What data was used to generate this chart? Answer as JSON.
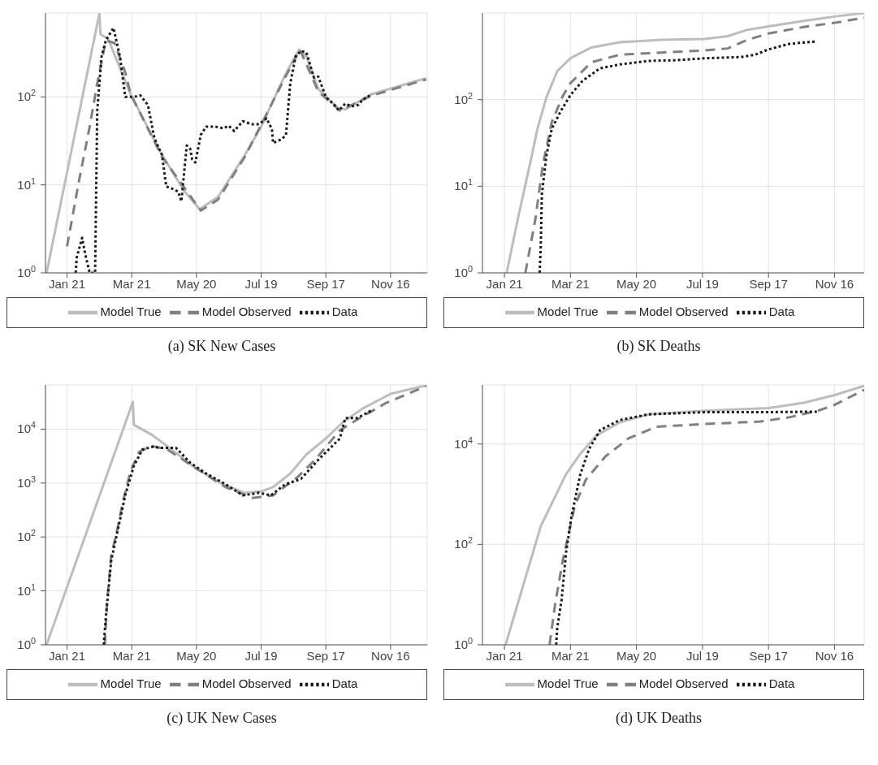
{
  "chart_data": [
    {
      "type": "line",
      "title": "(a) SK New Cases",
      "log": true,
      "grid": true,
      "legend": "bottom",
      "xlim": [
        "--01-01",
        "--12-20"
      ],
      "xticks": [
        {
          "value": "--01-21",
          "label": "Jan 21"
        },
        {
          "value": "--03-21",
          "label": "Mar 21"
        },
        {
          "value": "--05-20",
          "label": "May 20"
        },
        {
          "value": "--07-19",
          "label": "Jul 19"
        },
        {
          "value": "--09-17",
          "label": "Sep 17"
        },
        {
          "value": "--11-16",
          "label": "Nov 16"
        }
      ],
      "ylim": [
        1,
        900
      ],
      "yticks": [
        {
          "value": 1,
          "label": "10$^{0}$"
        },
        {
          "value": 10,
          "label": "10$^{1}$"
        },
        {
          "value": 100,
          "label": "10$^{2}$"
        }
      ],
      "series": [
        {
          "name": "Model True",
          "color": "#bdbdbd",
          "line_style": "solid",
          "x": [
            "--01-02",
            "--02-20",
            "--02-21",
            "--02-28",
            "--03-20",
            "--04-18",
            "--05-09",
            "--05-23",
            "--06-09",
            "--07-04",
            "--07-19",
            "--08-10",
            "--08-23",
            "--08-30",
            "--09-10",
            "--09-28",
            "--10-05",
            "--10-29",
            "--11-24",
            "--12-19"
          ],
          "values": [
            1,
            890,
            515,
            460,
            107,
            22,
            8.4,
            5.3,
            7.3,
            22,
            46,
            176,
            345,
            290,
            123,
            75,
            72,
            107,
            133,
            163
          ]
        },
        {
          "name": "Model Observed",
          "color": "#808080",
          "line_style": "dashed",
          "x": [
            "--01-21",
            "--02-01",
            "--02-11",
            "--02-18",
            "--02-26",
            "--03-05",
            "--03-15",
            "--03-20",
            "--04-18",
            "--05-24",
            "--06-09",
            "--07-04",
            "--08-10",
            "--08-24",
            "--09-10",
            "--09-30",
            "--10-29",
            "--12-19"
          ],
          "values": [
            2,
            11,
            46,
            142,
            440,
            410,
            190,
            107,
            21,
            5.1,
            6.8,
            21,
            165,
            345,
            115,
            70,
            103,
            158
          ]
        },
        {
          "name": "Data",
          "color": "#1a1a1a",
          "line_style": "dotted",
          "x": [
            "--01-29",
            "--01-30",
            "--02-04",
            "--02-07",
            "--02-11",
            "--02-16",
            "--02-18",
            "--02-22",
            "--02-26",
            "--03-04",
            "--03-10",
            "--03-15",
            "--03-23",
            "--03-29",
            "--04-05",
            "--04-11",
            "--04-18",
            "--04-22",
            "--04-28",
            "--05-03",
            "--05-06",
            "--05-11",
            "--05-14",
            "--05-16",
            "--05-19",
            "--05-24",
            "--05-29",
            "--06-06",
            "--06-14",
            "--06-19",
            "--06-24",
            "--07-02",
            "--07-10",
            "--07-17",
            "--07-24",
            "--07-29",
            "--07-30",
            "--08-07",
            "--08-11",
            "--08-15",
            "--08-20",
            "--08-25",
            "--08-30",
            "--09-06",
            "--09-10",
            "--09-17",
            "--09-25",
            "--09-29",
            "--10-05",
            "--10-11",
            "--10-17",
            "--10-21",
            "--10-30"
          ],
          "values": [
            1,
            1.5,
            2.5,
            1.6,
            1,
            1,
            70,
            290,
            440,
            610,
            290,
            100,
            100,
            104,
            81,
            34,
            22,
            9.6,
            9,
            8.4,
            6.5,
            28,
            26,
            19.6,
            18,
            37,
            46,
            46,
            44,
            47,
            41,
            53,
            49,
            49,
            57,
            43,
            30,
            33,
            37,
            142,
            290,
            333,
            320,
            165,
            170,
            100,
            81,
            70,
            84,
            78,
            81,
            93,
            107
          ]
        }
      ]
    },
    {
      "type": "line",
      "title": "(b) SK Deaths",
      "log": true,
      "grid": true,
      "legend": "bottom",
      "xlim": [
        "--01-01",
        "--12-13"
      ],
      "xticks": [
        {
          "value": "--01-21",
          "label": "Jan 21"
        },
        {
          "value": "--03-21",
          "label": "Mar 21"
        },
        {
          "value": "--05-20",
          "label": "May 20"
        },
        {
          "value": "--07-19",
          "label": "Jul 19"
        },
        {
          "value": "--09-17",
          "label": "Sep 17"
        },
        {
          "value": "--11-16",
          "label": "Nov 16"
        }
      ],
      "ylim": [
        1,
        1000
      ],
      "yticks": [
        {
          "value": 1,
          "label": "10$^{0}$"
        },
        {
          "value": 10,
          "label": "10$^{1}$"
        },
        {
          "value": 100,
          "label": "10$^{2}$"
        }
      ],
      "series": [
        {
          "name": "Model True",
          "color": "#bdbdbd",
          "line_style": "solid",
          "x": [
            "--01-23",
            "--02-02",
            "--02-13",
            "--02-20",
            "--02-28",
            "--03-09",
            "--03-21",
            "--04-09",
            "--05-05",
            "--06-12",
            "--07-21",
            "--08-11",
            "--08-29",
            "--09-17",
            "--10-19",
            "--11-16",
            "--12-13"
          ],
          "values": [
            1,
            4.1,
            17.6,
            46,
            105,
            213,
            300,
            400,
            460,
            490,
            500,
            540,
            640,
            700,
            810,
            910,
            1000
          ]
        },
        {
          "name": "Model Observed",
          "color": "#808080",
          "line_style": "dashed",
          "x": [
            "--02-09",
            "--02-18",
            "--02-25",
            "--03-04",
            "--03-14",
            "--03-21",
            "--04-09",
            "--05-05",
            "--06-12",
            "--07-21",
            "--08-11",
            "--08-29",
            "--09-17",
            "--10-19",
            "--11-16",
            "--12-13"
          ],
          "values": [
            1,
            4.1,
            18,
            55,
            110,
            155,
            270,
            330,
            350,
            370,
            390,
            490,
            580,
            690,
            770,
            880
          ]
        },
        {
          "name": "Data",
          "color": "#1a1a1a",
          "line_style": "dotted",
          "x": [
            "--02-22",
            "--02-23",
            "--02-24",
            "--02-28",
            "--03-04",
            "--03-12",
            "--03-21",
            "--04-01",
            "--04-17",
            "--05-05",
            "--05-31",
            "--06-25",
            "--07-21",
            "--08-23",
            "--09-05",
            "--09-17",
            "--10-06",
            "--10-31"
          ],
          "values": [
            1,
            2,
            8,
            22,
            46,
            73,
            113,
            165,
            230,
            255,
            280,
            285,
            300,
            310,
            330,
            380,
            440,
            470
          ]
        }
      ]
    },
    {
      "type": "line",
      "title": "(c) UK New Cases",
      "log": true,
      "grid": true,
      "legend": "bottom",
      "xlim": [
        "--01-01",
        "--12-20"
      ],
      "xticks": [
        {
          "value": "--01-21",
          "label": "Jan 21"
        },
        {
          "value": "--03-21",
          "label": "Mar 21"
        },
        {
          "value": "--05-20",
          "label": "May 20"
        },
        {
          "value": "--07-19",
          "label": "Jul 19"
        },
        {
          "value": "--09-17",
          "label": "Sep 17"
        },
        {
          "value": "--11-16",
          "label": "Nov 16"
        }
      ],
      "ylim": [
        1,
        66000
      ],
      "yticks": [
        {
          "value": 1,
          "label": "10$^{0}$"
        },
        {
          "value": 10,
          "label": "10$^{1}$"
        },
        {
          "value": 100,
          "label": "10$^{2}$"
        },
        {
          "value": 1000,
          "label": "10$^{3}$"
        },
        {
          "value": 10000,
          "label": "10$^{4}$"
        }
      ],
      "series": [
        {
          "name": "Model True",
          "color": "#bdbdbd",
          "line_style": "solid",
          "x": [
            "--01-02",
            "--03-22",
            "--03-23",
            "--04-08",
            "--04-23",
            "--05-19",
            "--06-14",
            "--07-04",
            "--07-19",
            "--07-30",
            "--08-15",
            "--08-30",
            "--09-17",
            "--10-03",
            "--10-21",
            "--11-16",
            "--12-19"
          ],
          "values": [
            1,
            32000,
            12000,
            8000,
            4800,
            1900,
            940,
            660,
            700,
            840,
            1500,
            3400,
            6700,
            13500,
            24000,
            45000,
            65000
          ]
        },
        {
          "name": "Model Observed",
          "color": "#808080",
          "line_style": "dashed",
          "x": [
            "--02-25",
            "--02-27",
            "--03-02",
            "--03-08",
            "--03-13",
            "--03-20",
            "--03-28",
            "--04-08",
            "--04-23",
            "--05-19",
            "--06-16",
            "--07-11",
            "--07-30",
            "--08-22",
            "--09-07",
            "--09-30",
            "--10-16",
            "--11-11",
            "--12-19"
          ],
          "values": [
            1,
            5.8,
            46,
            150,
            470,
            1700,
            3800,
            4900,
            4200,
            1900,
            840,
            530,
            590,
            1300,
            2700,
            9500,
            15000,
            30000,
            63000
          ]
        },
        {
          "name": "Data",
          "color": "#1a1a1a",
          "line_style": "dotted",
          "x": [
            "--02-24",
            "--02-26",
            "--03-02",
            "--03-09",
            "--03-15",
            "--03-23",
            "--03-31",
            "--04-09",
            "--04-18",
            "--05-01",
            "--05-14",
            "--05-29",
            "--06-16",
            "--07-02",
            "--07-17",
            "--07-28",
            "--08-10",
            "--08-25",
            "--09-10",
            "--09-30",
            "--10-05",
            "--10-16",
            "--10-29"
          ],
          "values": [
            1,
            3.3,
            37,
            166,
            600,
            2100,
            4200,
            4700,
            4500,
            4500,
            2400,
            1500,
            950,
            590,
            660,
            590,
            940,
            1200,
            2700,
            6700,
            16000,
            16000,
            22000
          ]
        }
      ]
    },
    {
      "type": "line",
      "title": "(d) UK Deaths",
      "log": true,
      "grid": true,
      "legend": "bottom",
      "xlim": [
        "--01-01",
        "--12-13"
      ],
      "xticks": [
        {
          "value": "--01-21",
          "label": "Jan 21"
        },
        {
          "value": "--03-21",
          "label": "Mar 21"
        },
        {
          "value": "--05-20",
          "label": "May 20"
        },
        {
          "value": "--07-19",
          "label": "Jul 19"
        },
        {
          "value": "--09-17",
          "label": "Sep 17"
        },
        {
          "value": "--11-16",
          "label": "Nov 16"
        }
      ],
      "ylim": [
        1,
        150000
      ],
      "yticks": [
        {
          "value": 1,
          "label": "10$^{0}$"
        },
        {
          "value": 100,
          "label": "10$^{2}$"
        },
        {
          "value": 10000,
          "label": "10$^{4}$"
        }
      ],
      "series": [
        {
          "name": "Model True",
          "color": "#bdbdbd",
          "line_style": "solid",
          "x": [
            "--01-22",
            "--02-23",
            "--03-17",
            "--03-30",
            "--04-14",
            "--05-05",
            "--05-31",
            "--07-21",
            "--09-17",
            "--10-19",
            "--11-16",
            "--12-13"
          ],
          "values": [
            1,
            230,
            2500,
            6400,
            15000,
            27000,
            39000,
            46000,
            52000,
            66000,
            94000,
            144000
          ]
        },
        {
          "name": "Model Observed",
          "color": "#808080",
          "line_style": "dashed",
          "x": [
            "--03-02",
            "--03-07",
            "--03-14",
            "--03-25",
            "--04-04",
            "--04-22",
            "--05-13",
            "--06-07",
            "--07-21",
            "--09-10",
            "--10-06",
            "--11-01",
            "--11-16",
            "--12-13"
          ],
          "values": [
            1,
            6.3,
            48,
            590,
            1950,
            5700,
            13000,
            22000,
            25000,
            28000,
            34000,
            46000,
            60000,
            120000
          ]
        },
        {
          "name": "Data",
          "color": "#1a1a1a",
          "line_style": "dotted",
          "x": [
            "--03-08",
            "--03-09",
            "--03-13",
            "--03-17",
            "--03-22",
            "--03-30",
            "--04-07",
            "--04-17",
            "--05-05",
            "--05-31",
            "--07-21",
            "--09-10",
            "--10-31"
          ],
          "values": [
            1,
            2.2,
            8,
            69,
            370,
            2500,
            8000,
            19000,
            30000,
            39000,
            43000,
            43000,
            44000
          ]
        }
      ]
    }
  ]
}
